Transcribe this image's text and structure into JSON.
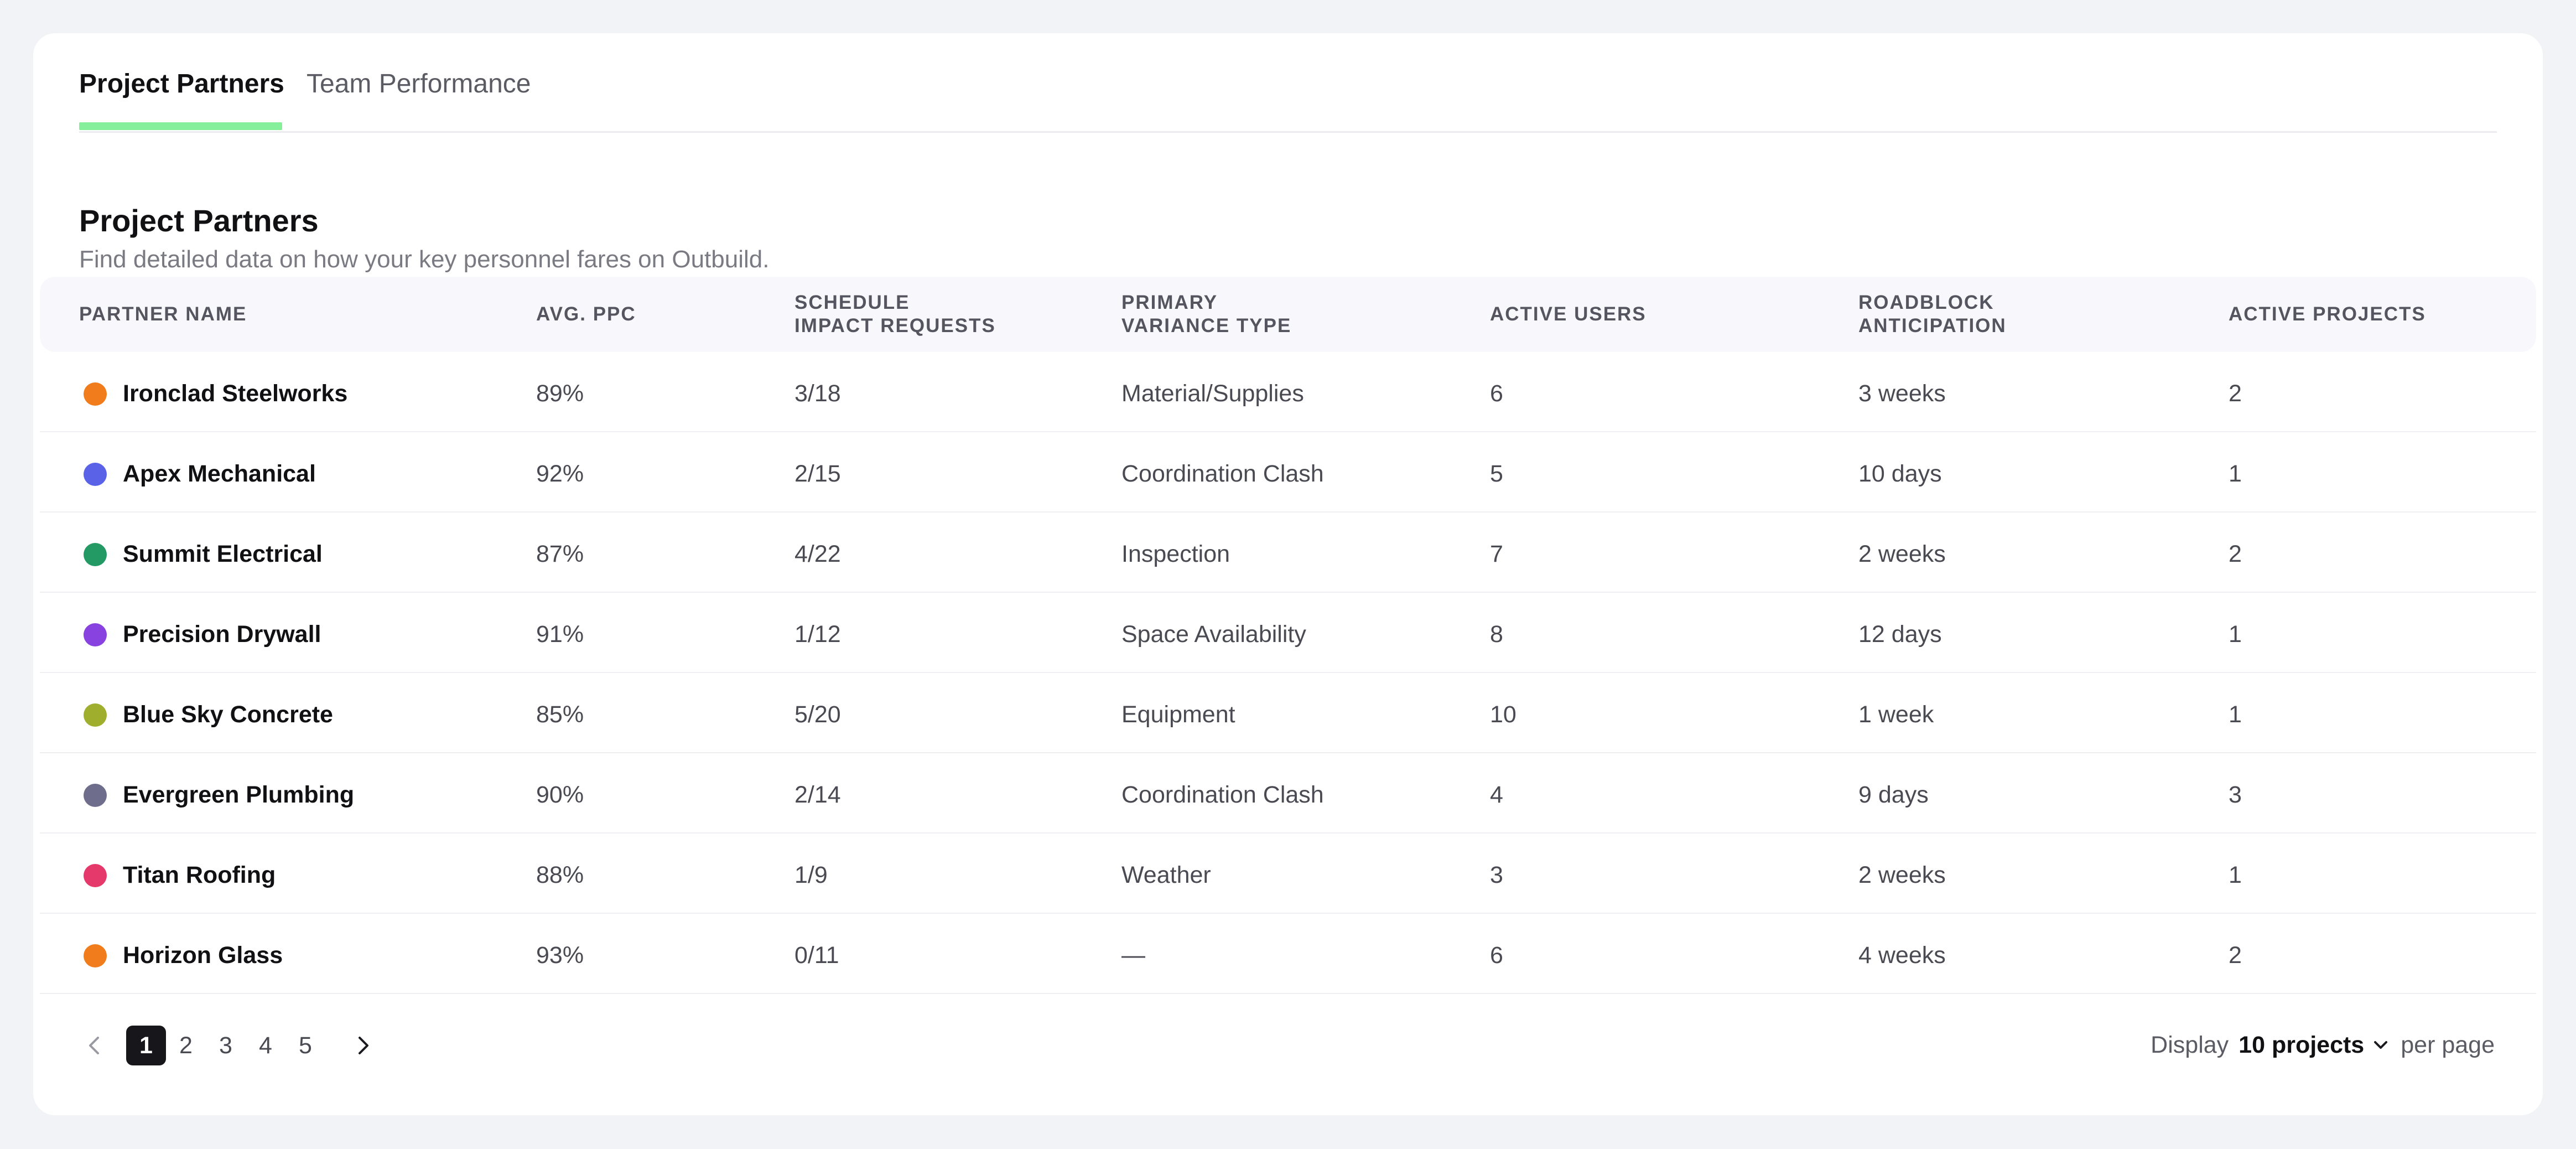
{
  "tabs": [
    {
      "label": "Project Partners",
      "active": true
    },
    {
      "label": "Team Performance",
      "active": false
    }
  ],
  "section": {
    "title": "Project Partners",
    "subtitle": "Find detailed data on how your key personnel fares on Outbuild."
  },
  "table": {
    "columns": [
      "PARTNER NAME",
      "AVG. PPC",
      "SCHEDULE\nIMPACT REQUESTS",
      "PRIMARY\nVARIANCE TYPE",
      "ACTIVE USERS",
      "ROADBLOCK\nANTICIPATION",
      "ACTIVE PROJECTS"
    ],
    "rows": [
      {
        "name": "Ironclad Steelworks",
        "color": "#f07c1c",
        "ppc": "89%",
        "sir": "3/18",
        "variance": "Material/Supplies",
        "users": "6",
        "roadblock": "3 weeks",
        "projects": "2"
      },
      {
        "name": "Apex Mechanical",
        "color": "#5a63e8",
        "ppc": "92%",
        "sir": "2/15",
        "variance": "Coordination Clash",
        "users": "5",
        "roadblock": "10 days",
        "projects": "1"
      },
      {
        "name": "Summit Electrical",
        "color": "#239a64",
        "ppc": "87%",
        "sir": "4/22",
        "variance": "Inspection",
        "users": "7",
        "roadblock": "2 weeks",
        "projects": "2"
      },
      {
        "name": "Precision Drywall",
        "color": "#8842e0",
        "ppc": "91%",
        "sir": "1/12",
        "variance": "Space Availability",
        "users": "8",
        "roadblock": "12 days",
        "projects": "1"
      },
      {
        "name": "Blue Sky Concrete",
        "color": "#9fae2c",
        "ppc": "85%",
        "sir": "5/20",
        "variance": "Equipment",
        "users": "10",
        "roadblock": "1 week",
        "projects": "1"
      },
      {
        "name": "Evergreen Plumbing",
        "color": "#6e6e8c",
        "ppc": "90%",
        "sir": "2/14",
        "variance": "Coordination Clash",
        "users": "4",
        "roadblock": "9 days",
        "projects": "3"
      },
      {
        "name": "Titan Roofing",
        "color": "#e6396b",
        "ppc": "88%",
        "sir": "1/9",
        "variance": "Weather",
        "users": "3",
        "roadblock": "2 weeks",
        "projects": "1"
      },
      {
        "name": "Horizon Glass",
        "color": "#f07c1c",
        "ppc": "93%",
        "sir": "0/11",
        "variance": "—",
        "users": "6",
        "roadblock": "4 weeks",
        "projects": "2"
      }
    ]
  },
  "pagination": {
    "pages": [
      "1",
      "2",
      "3",
      "4",
      "5"
    ],
    "current_page": "1",
    "prev_icon": "chevron-left-icon",
    "next_icon": "chevron-right-icon"
  },
  "per_page": {
    "prefix": "Display",
    "value": "10 projects",
    "suffix": "per page",
    "icon": "chevron-down-icon"
  },
  "colors": {
    "accent_underline": "#86ef9a",
    "current_page_bg": "#17171b"
  }
}
